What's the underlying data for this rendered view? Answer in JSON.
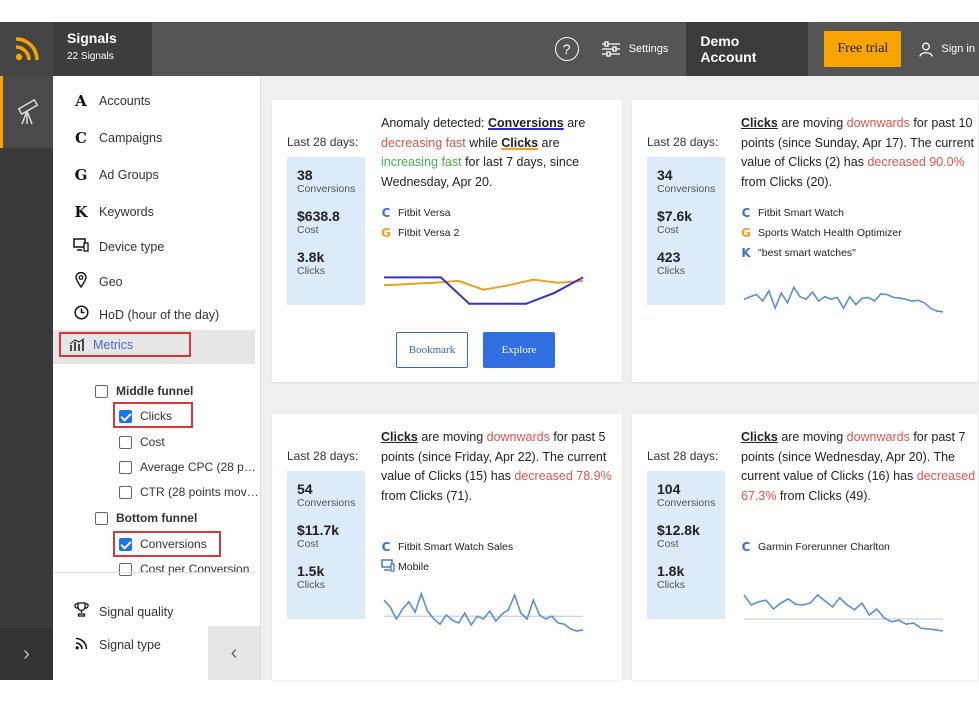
{
  "app": {
    "title": "Signals",
    "subtitle": "22 Signals"
  },
  "header": {
    "help_label": "?",
    "settings_label": "Settings",
    "account_label": "Demo Account",
    "free_trial_label": "Free trial",
    "sign_in_label": "Sign in"
  },
  "sidebar": {
    "items": [
      {
        "icon": "A",
        "label": "Accounts"
      },
      {
        "icon": "C",
        "label": "Campaigns"
      },
      {
        "icon": "G",
        "label": "Ad Groups"
      },
      {
        "icon": "K",
        "label": "Keywords"
      },
      {
        "icon": "device-type-icon",
        "label": "Device type"
      },
      {
        "icon": "geo-pin-icon",
        "label": "Geo"
      },
      {
        "icon": "clock-icon",
        "label": "HoD (hour of the day)"
      }
    ],
    "metrics_label": "Metrics",
    "middle_funnel": {
      "label": "Middle funnel",
      "checked": false
    },
    "middle_items": [
      {
        "label": "Clicks",
        "checked": true
      },
      {
        "label": "Cost",
        "checked": false
      },
      {
        "label": "Average CPC (28 p…",
        "checked": false
      },
      {
        "label": "CTR (28 points mov…",
        "checked": false
      }
    ],
    "bottom_funnel": {
      "label": "Bottom funnel",
      "checked": false
    },
    "bottom_items": [
      {
        "label": "Conversions",
        "checked": true
      },
      {
        "label": "Cost per Conversion",
        "checked": false
      }
    ],
    "signal_quality_label": "Signal quality",
    "signal_type_label": "Signal type"
  },
  "cards": [
    {
      "period": "Last 28 days:",
      "stats": [
        {
          "value": "38",
          "label": "Conversions"
        },
        {
          "value": "$638.8",
          "label": "Cost"
        },
        {
          "value": "3.8k",
          "label": "Clicks"
        }
      ],
      "message": {
        "p1": "Anomaly detected: ",
        "m1": "Conversions",
        "p2": " are ",
        "w1": "decreasing fast",
        "p3": " while ",
        "m2": "Clicks",
        "p4": " are ",
        "w2": "increasing fast",
        "p5": " for last 7 days, since Wednesday, Apr 20."
      },
      "entities": [
        {
          "glyph": "C",
          "color": "#3b6fd8",
          "label": "Fitbit Versa"
        },
        {
          "glyph": "G",
          "color": "#f0a020",
          "label": "Fitbit Versa 2"
        }
      ],
      "buttons": {
        "bookmark": "Bookmark",
        "explore": "Explore"
      }
    },
    {
      "period": "Last 28 days:",
      "stats": [
        {
          "value": "34",
          "label": "Conversions"
        },
        {
          "value": "$7.6k",
          "label": "Cost"
        },
        {
          "value": "423",
          "label": "Clicks"
        }
      ],
      "message": {
        "m1": "Clicks",
        "p1": " are moving ",
        "w1": "downwards",
        "p2": " for past 10 points (since Sunday, Apr 17). The current value of Clicks (2) has ",
        "w2": "decreased 90.0%",
        "p3": " from Clicks (20)."
      },
      "entities": [
        {
          "glyph": "C",
          "color": "#3b6fd8",
          "label": "Fitbit Smart Watch"
        },
        {
          "glyph": "G",
          "color": "#f0a020",
          "label": "Sports Watch Health Optimizer"
        },
        {
          "glyph": "K",
          "color": "#3b6fd8",
          "label": "\"best smart watches\""
        }
      ]
    },
    {
      "period": "Last 28 days:",
      "stats": [
        {
          "value": "54",
          "label": "Conversions"
        },
        {
          "value": "$11.7k",
          "label": "Cost"
        },
        {
          "value": "1.5k",
          "label": "Clicks"
        }
      ],
      "message": {
        "m1": "Clicks",
        "p1": " are moving ",
        "w1": "downwards",
        "p2": " for past 5 points (since Friday, Apr 22). The current value of Clicks (15) has ",
        "w2": "decreased 78.9%",
        "p3": " from Clicks (71)."
      },
      "entities": [
        {
          "glyph": "C",
          "color": "#3b6fd8",
          "label": "Fitbit Smart Watch Sales"
        },
        {
          "glyph": "monitor-icon",
          "color": "#3b6fd8",
          "label": "Mobile"
        }
      ]
    },
    {
      "period": "Last 28 days:",
      "stats": [
        {
          "value": "104",
          "label": "Conversions"
        },
        {
          "value": "$12.8k",
          "label": "Cost"
        },
        {
          "value": "1.8k",
          "label": "Clicks"
        }
      ],
      "message": {
        "m1": "Clicks",
        "p1": " are moving ",
        "w1": "downwards",
        "p2": " for past 7 points (since Wednesday, Apr 20). The current value of Clicks (16) has ",
        "w2": "decreased 67.3%",
        "p3": " from Clicks (49)."
      },
      "entities": [
        {
          "glyph": "C",
          "color": "#3b6fd8",
          "label": "Garmin Forerunner Charlton"
        }
      ]
    }
  ],
  "sparklines": {
    "card0_conversions": [
      0.9,
      0.9,
      0.9,
      0.3,
      0.3,
      0.3,
      0.55,
      0.9
    ],
    "card0_clicks": [
      0.72,
      0.75,
      0.78,
      0.82,
      0.62,
      0.72,
      0.85,
      0.78,
      0.82
    ],
    "card1": [
      0.55,
      0.62,
      0.68,
      0.5,
      0.78,
      0.3,
      0.72,
      0.45,
      0.88,
      0.62,
      0.55,
      0.75,
      0.5,
      0.62,
      0.55,
      0.6,
      0.3,
      0.62,
      0.4,
      0.58,
      0.6,
      0.5,
      0.7,
      0.68,
      0.6,
      0.58,
      0.55,
      0.5,
      0.52,
      0.45,
      0.3,
      0.22,
      0.2
    ],
    "card2": [
      0.82,
      0.65,
      0.35,
      0.6,
      0.78,
      0.52,
      0.98,
      0.55,
      0.35,
      0.22,
      0.45,
      0.32,
      0.25,
      0.5,
      0.2,
      0.42,
      0.35,
      0.55,
      0.3,
      0.48,
      0.58,
      0.95,
      0.5,
      0.35,
      0.82,
      0.45,
      0.35,
      0.42,
      0.25,
      0.22,
      0.1,
      0.05,
      0.08
    ],
    "card2_baseline": 0.42,
    "card3": [
      0.95,
      0.7,
      0.78,
      0.82,
      0.6,
      0.75,
      0.85,
      0.72,
      0.7,
      0.75,
      0.95,
      0.8,
      0.65,
      0.88,
      0.7,
      0.58,
      0.75,
      0.45,
      0.6,
      0.38,
      0.28,
      0.32,
      0.22,
      0.25,
      0.12,
      0.1,
      0.08,
      0.05
    ],
    "card3_baseline": 0.35
  }
}
